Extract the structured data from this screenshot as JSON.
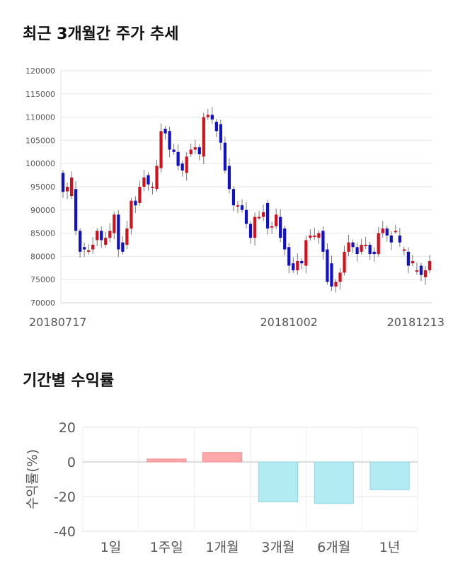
{
  "sections": {
    "price_title": "최근 3개월간 주가 추세",
    "returns_title": "기간별 수익률"
  },
  "colors": {
    "up": "#d3101c",
    "down": "#1010c8",
    "positive_bar": "#ffa8aa",
    "negative_bar": "#b3ebf2",
    "grid": "#e6e6e6"
  },
  "chart_data": [
    {
      "type": "candlestick",
      "title": "",
      "ylim": [
        70000,
        120000
      ],
      "y_ticks": [
        70000,
        75000,
        80000,
        85000,
        90000,
        95000,
        100000,
        105000,
        110000,
        115000,
        120000
      ],
      "x_tick_labels": [
        "20180717",
        "20181002",
        "20181213"
      ],
      "x_tick_index": [
        0,
        53,
        102
      ],
      "closes": [
        93900,
        95000,
        97000,
        85500,
        81000,
        81500,
        81300,
        82500,
        85500,
        83500,
        84000,
        85500,
        89000,
        81500,
        81000,
        86000,
        92000,
        91000,
        95000,
        97000,
        95500,
        95000,
        99500,
        107000,
        106500,
        103000,
        102500,
        99500,
        98500,
        101500,
        103000,
        103500,
        102000,
        110000,
        110500,
        109500,
        107000,
        104500,
        98500,
        94500,
        91000,
        91000,
        90000,
        87000,
        84000,
        88500,
        88500,
        89500,
        86000,
        86500,
        89000,
        84000,
        81500,
        78000,
        77000,
        79000,
        78500,
        83500,
        84500,
        84500,
        85000,
        81000,
        74500,
        73500,
        74500,
        76500,
        81000,
        83000,
        82000,
        80500,
        82500,
        82500,
        80500,
        80500,
        85000,
        86000,
        84500,
        83000,
        85500,
        83000,
        81500,
        78000,
        79000,
        77000,
        76000,
        77000,
        79000
      ],
      "opens": [
        98000,
        94000,
        93000,
        94500,
        85500,
        82000,
        81000,
        81500,
        83500,
        85500,
        82500,
        84000,
        85000,
        89000,
        83000,
        82500,
        86000,
        92000,
        91500,
        95000,
        97500,
        95000,
        94500,
        99000,
        107500,
        107000,
        103000,
        102500,
        100000,
        98000,
        102000,
        103000,
        103500,
        101500,
        110000,
        110500,
        109000,
        108500,
        104500,
        99500,
        94500,
        91000,
        91000,
        90000,
        87000,
        84000,
        88500,
        88500,
        91500,
        86500,
        86500,
        88500,
        86000,
        82000,
        78500,
        77000,
        79000,
        78000,
        84000,
        84500,
        84000,
        85500,
        81500,
        78500,
        73500,
        74500,
        76500,
        81000,
        83000,
        82000,
        81000,
        82500,
        82500,
        81000,
        80500,
        85000,
        86000,
        84500,
        85500,
        84500,
        81500,
        81000,
        78500,
        77000,
        78000,
        75500,
        77000
      ],
      "ylabel": ""
    },
    {
      "type": "bar",
      "categories": [
        "1일",
        "1주일",
        "1개월",
        "3개월",
        "6개월",
        "1년"
      ],
      "values": [
        0,
        1.7,
        5.4,
        -23.0,
        -24.0,
        -16.0
      ],
      "ylim": [
        -40,
        20
      ],
      "y_ticks": [
        20,
        0,
        -20,
        -40
      ],
      "ylabel": "수익률(%)"
    }
  ]
}
